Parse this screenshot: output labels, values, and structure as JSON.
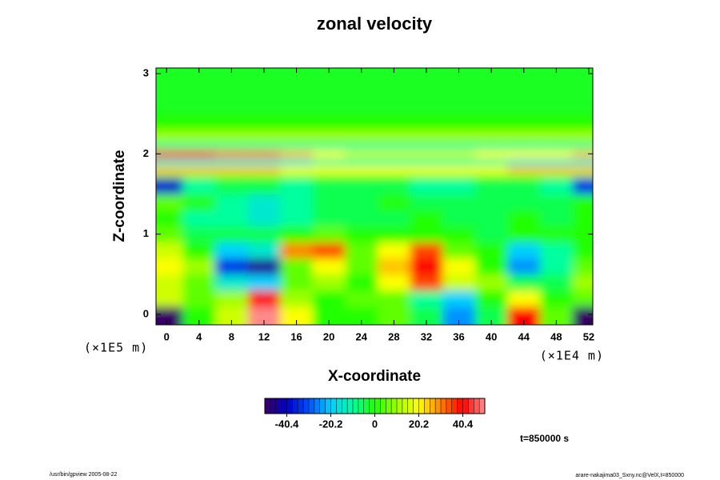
{
  "chart_data": {
    "type": "heatmap",
    "title": "zonal velocity",
    "xlabel": "X-coordinate",
    "ylabel": "Z-coordinate",
    "x_unit": "(×1E4 m)",
    "y_unit": "(×1E5 m)",
    "time_label": "t=850000 s",
    "footer_left": "/usr/bin/gpview 2005-08-22",
    "footer_right": "arare-nakajima03_Sxny.nc@VelX,t=850000",
    "xlim": [
      -1.3,
      52.5
    ],
    "ylim": [
      -0.13,
      3.07
    ],
    "xticks": [
      0,
      4,
      8,
      12,
      16,
      20,
      24,
      28,
      32,
      36,
      40,
      44,
      48,
      52
    ],
    "yticks": [
      0,
      1,
      2,
      3
    ],
    "x_bins": [
      -1.3,
      2,
      6,
      10,
      14,
      18,
      22,
      26,
      30,
      34,
      38,
      42,
      46,
      50,
      52.5
    ],
    "y_bins": [
      -0.13,
      0.1,
      0.3,
      0.5,
      0.7,
      0.9,
      1.1,
      1.3,
      1.5,
      1.7,
      1.75,
      1.85,
      1.95,
      2.05,
      2.15,
      2.3,
      2.5,
      3.07
    ],
    "values": [
      [
        -50,
        0,
        15,
        50,
        20,
        0,
        0,
        5,
        -5,
        -25,
        -5,
        40,
        5,
        -50
      ],
      [
        15,
        5,
        10,
        40,
        10,
        0,
        5,
        5,
        -10,
        -20,
        0,
        20,
        0,
        5
      ],
      [
        15,
        5,
        -15,
        -20,
        5,
        10,
        0,
        20,
        35,
        15,
        10,
        -5,
        -5,
        10
      ],
      [
        20,
        10,
        -35,
        -45,
        5,
        20,
        5,
        25,
        40,
        20,
        0,
        -25,
        -10,
        5
      ],
      [
        15,
        0,
        -20,
        -15,
        30,
        35,
        5,
        20,
        35,
        5,
        0,
        -20,
        -10,
        0
      ],
      [
        5,
        -5,
        -5,
        -5,
        0,
        5,
        0,
        0,
        0,
        0,
        -5,
        0,
        0,
        0
      ],
      [
        0,
        -10,
        -10,
        -15,
        -10,
        -5,
        -5,
        -5,
        0,
        -5,
        -5,
        0,
        -5,
        0
      ],
      [
        5,
        0,
        -10,
        -15,
        -10,
        -5,
        -5,
        0,
        -5,
        -5,
        -5,
        -5,
        -5,
        0
      ],
      [
        -40,
        -10,
        -5,
        -5,
        -10,
        -5,
        -5,
        -5,
        -10,
        -10,
        -5,
        -5,
        -10,
        -35
      ],
      [
        5,
        5,
        5,
        5,
        5,
        5,
        5,
        5,
        5,
        5,
        5,
        5,
        5,
        5
      ],
      [
        25,
        25,
        25,
        25,
        20,
        20,
        20,
        20,
        20,
        20,
        20,
        25,
        25,
        25
      ],
      [
        -15,
        -15,
        -15,
        -15,
        -15,
        -10,
        -10,
        -10,
        -10,
        -10,
        -10,
        -15,
        -15,
        -15
      ],
      [
        35,
        35,
        30,
        30,
        25,
        20,
        15,
        15,
        15,
        15,
        20,
        20,
        20,
        25
      ],
      [
        -10,
        -10,
        -10,
        -10,
        -10,
        -10,
        -10,
        -10,
        -10,
        -10,
        -10,
        -10,
        -10,
        -10
      ],
      [
        10,
        10,
        10,
        10,
        10,
        10,
        10,
        10,
        10,
        10,
        10,
        10,
        10,
        10
      ],
      [
        0,
        0,
        0,
        0,
        0,
        0,
        0,
        0,
        0,
        0,
        0,
        0,
        0,
        0
      ],
      [
        -2,
        -2,
        -2,
        -2,
        -2,
        -2,
        -2,
        -2,
        -2,
        -2,
        -2,
        -2,
        -2,
        -2
      ]
    ],
    "clim": [
      -50.5,
      50.5
    ],
    "cticks": [
      -40.4,
      -20.2,
      0,
      20.2,
      40.4
    ],
    "colorscale": [
      "#3a0060",
      "#0000c8",
      "#0050ff",
      "#00d0ff",
      "#00ffa0",
      "#20ff00",
      "#a0ff00",
      "#ffff00",
      "#ff8000",
      "#ff0000",
      "#ff9090"
    ]
  }
}
